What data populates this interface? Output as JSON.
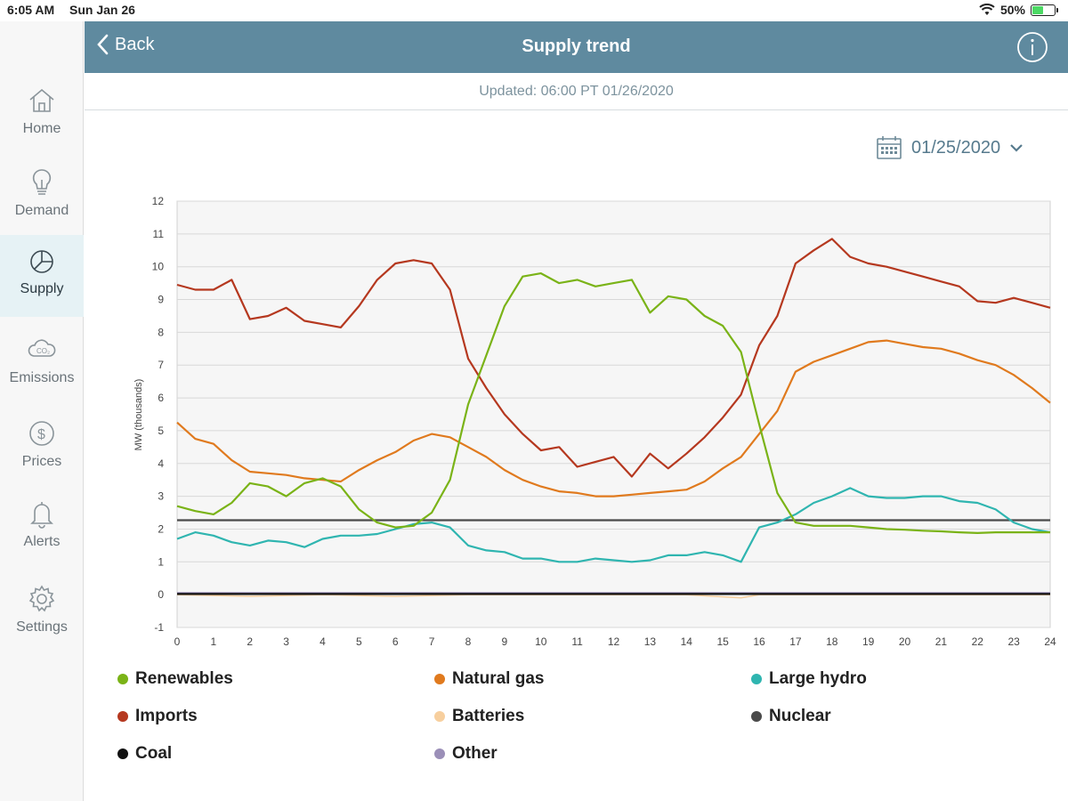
{
  "status": {
    "time": "6:05 AM",
    "date": "Sun Jan 26",
    "battery": "50%"
  },
  "sidebar": {
    "items": [
      {
        "label": "Home",
        "icon": "home-icon"
      },
      {
        "label": "Demand",
        "icon": "lightbulb-icon"
      },
      {
        "label": "Supply",
        "icon": "pie-chart-icon"
      },
      {
        "label": "Emissions",
        "icon": "co2-cloud-icon"
      },
      {
        "label": "Prices",
        "icon": "dollar-icon"
      },
      {
        "label": "Alerts",
        "icon": "bell-icon"
      },
      {
        "label": "Settings",
        "icon": "gear-icon"
      }
    ],
    "active": "Supply"
  },
  "header": {
    "back_label": "Back",
    "title": "Supply trend",
    "info_icon": "info-icon"
  },
  "updated": "Updated: 06:00 PT 01/26/2020",
  "date_picker": {
    "value": "01/25/2020",
    "icon": "calendar-icon"
  },
  "chart_data": {
    "type": "line",
    "title": "Supply trend",
    "xlabel": "",
    "ylabel": "MW (thousands)",
    "xlim": [
      0,
      24
    ],
    "ylim": [
      -1,
      12
    ],
    "x_ticks": [
      "0",
      "1",
      "2",
      "3",
      "4",
      "5",
      "6",
      "7",
      "8",
      "9",
      "10",
      "11",
      "12",
      "13",
      "14",
      "15",
      "16",
      "17",
      "18",
      "19",
      "20",
      "21",
      "22",
      "23",
      "24"
    ],
    "y_ticks": [
      "-1",
      "0",
      "1",
      "2",
      "3",
      "4",
      "5",
      "6",
      "7",
      "8",
      "9",
      "10",
      "11",
      "12"
    ],
    "grid": true,
    "colors": {
      "Renewables": "#7ab317",
      "Natural gas": "#e07a1e",
      "Large hydro": "#2fb5b0",
      "Imports": "#b5381f",
      "Batteries": "#f7cf9e",
      "Nuclear": "#4a4a4a",
      "Coal": "#111111",
      "Other": "#9b8fb8"
    },
    "series": [
      {
        "name": "Renewables",
        "x": [
          0,
          0.5,
          1,
          1.5,
          2,
          2.5,
          3,
          3.5,
          4,
          4.5,
          5,
          5.5,
          6,
          6.5,
          7,
          7.5,
          8,
          8.5,
          9,
          9.5,
          10,
          10.5,
          11,
          11.5,
          12,
          12.5,
          13,
          13.5,
          14,
          14.5,
          15,
          15.5,
          16,
          16.5,
          17,
          17.5,
          18,
          18.5,
          19,
          19.5,
          20,
          20.5,
          21,
          21.5,
          22,
          22.5,
          23,
          23.5,
          24
        ],
        "values": [
          2.7,
          2.55,
          2.45,
          2.8,
          3.4,
          3.3,
          3.0,
          3.4,
          3.55,
          3.3,
          2.6,
          2.2,
          2.05,
          2.1,
          2.5,
          3.5,
          5.8,
          7.3,
          8.8,
          9.7,
          9.8,
          9.5,
          9.6,
          9.4,
          9.5,
          9.6,
          8.6,
          9.1,
          9.0,
          8.5,
          8.2,
          7.4,
          5.2,
          3.1,
          2.2,
          2.1,
          2.1,
          2.1,
          2.05,
          2.0,
          1.98,
          1.95,
          1.93,
          1.9,
          1.88,
          1.9,
          1.9,
          1.9,
          1.9
        ]
      },
      {
        "name": "Natural gas",
        "x": [
          0,
          0.5,
          1,
          1.5,
          2,
          2.5,
          3,
          3.5,
          4,
          4.5,
          5,
          5.5,
          6,
          6.5,
          7,
          7.5,
          8,
          8.5,
          9,
          9.5,
          10,
          10.5,
          11,
          11.5,
          12,
          12.5,
          13,
          13.5,
          14,
          14.5,
          15,
          15.5,
          16,
          16.5,
          17,
          17.5,
          18,
          18.5,
          19,
          19.5,
          20,
          20.5,
          21,
          21.5,
          22,
          22.5,
          23,
          23.5,
          24
        ],
        "values": [
          5.25,
          4.75,
          4.6,
          4.1,
          3.75,
          3.7,
          3.65,
          3.55,
          3.5,
          3.45,
          3.8,
          4.1,
          4.35,
          4.7,
          4.9,
          4.8,
          4.5,
          4.2,
          3.8,
          3.5,
          3.3,
          3.15,
          3.1,
          3.0,
          3.0,
          3.05,
          3.1,
          3.15,
          3.2,
          3.45,
          3.85,
          4.2,
          4.9,
          5.6,
          6.8,
          7.1,
          7.3,
          7.5,
          7.7,
          7.75,
          7.65,
          7.55,
          7.5,
          7.35,
          7.15,
          7.0,
          6.7,
          6.3,
          5.85
        ]
      },
      {
        "name": "Large hydro",
        "x": [
          0,
          0.5,
          1,
          1.5,
          2,
          2.5,
          3,
          3.5,
          4,
          4.5,
          5,
          5.5,
          6,
          6.5,
          7,
          7.5,
          8,
          8.5,
          9,
          9.5,
          10,
          10.5,
          11,
          11.5,
          12,
          12.5,
          13,
          13.5,
          14,
          14.5,
          15,
          15.5,
          16,
          16.5,
          17,
          17.5,
          18,
          18.5,
          19,
          19.5,
          20,
          20.5,
          21,
          21.5,
          22,
          22.5,
          23,
          23.5,
          24
        ],
        "values": [
          1.7,
          1.9,
          1.8,
          1.6,
          1.5,
          1.65,
          1.6,
          1.45,
          1.7,
          1.8,
          1.8,
          1.85,
          2.0,
          2.15,
          2.2,
          2.05,
          1.5,
          1.35,
          1.3,
          1.1,
          1.1,
          1.0,
          1.0,
          1.1,
          1.05,
          1.0,
          1.05,
          1.2,
          1.2,
          1.3,
          1.2,
          1.0,
          2.05,
          2.2,
          2.45,
          2.8,
          3.0,
          3.25,
          3.0,
          2.95,
          2.95,
          3.0,
          3.0,
          2.85,
          2.8,
          2.6,
          2.2,
          2.0,
          1.9
        ]
      },
      {
        "name": "Imports",
        "x": [
          0,
          0.5,
          1,
          1.5,
          2,
          2.5,
          3,
          3.5,
          4,
          4.5,
          5,
          5.5,
          6,
          6.5,
          7,
          7.5,
          8,
          8.5,
          9,
          9.5,
          10,
          10.5,
          11,
          11.5,
          12,
          12.5,
          13,
          13.5,
          14,
          14.5,
          15,
          15.5,
          16,
          16.5,
          17,
          17.5,
          18,
          18.5,
          19,
          19.5,
          20,
          20.5,
          21,
          21.5,
          22,
          22.5,
          23,
          23.5,
          24
        ],
        "values": [
          9.45,
          9.3,
          9.3,
          9.6,
          8.4,
          8.5,
          8.75,
          8.35,
          8.25,
          8.15,
          8.8,
          9.6,
          10.1,
          10.2,
          10.1,
          9.3,
          7.2,
          6.3,
          5.5,
          4.9,
          4.4,
          4.5,
          3.9,
          4.05,
          4.2,
          3.6,
          4.3,
          3.85,
          4.3,
          4.8,
          5.4,
          6.1,
          7.6,
          8.5,
          10.1,
          10.5,
          10.85,
          10.3,
          10.1,
          10.0,
          9.85,
          9.7,
          9.55,
          9.4,
          8.95,
          8.9,
          9.05,
          8.9,
          8.75
        ]
      },
      {
        "name": "Batteries",
        "x": [
          0,
          2,
          4,
          6,
          8,
          10,
          12,
          14,
          15.5,
          16,
          18,
          20,
          22,
          24
        ],
        "values": [
          0,
          -0.05,
          0,
          -0.05,
          0,
          0,
          0,
          0,
          -0.1,
          0,
          0,
          0,
          0,
          0
        ]
      },
      {
        "name": "Nuclear",
        "x": [
          0,
          24
        ],
        "values": [
          2.27,
          2.27
        ]
      },
      {
        "name": "Coal",
        "x": [
          0,
          24
        ],
        "values": [
          0.02,
          0.02
        ]
      },
      {
        "name": "Other",
        "x": [
          0,
          24
        ],
        "values": [
          0.05,
          0.05
        ]
      }
    ],
    "legend": [
      "Renewables",
      "Natural gas",
      "Large hydro",
      "Imports",
      "Batteries",
      "Nuclear",
      "Coal",
      "Other"
    ]
  }
}
